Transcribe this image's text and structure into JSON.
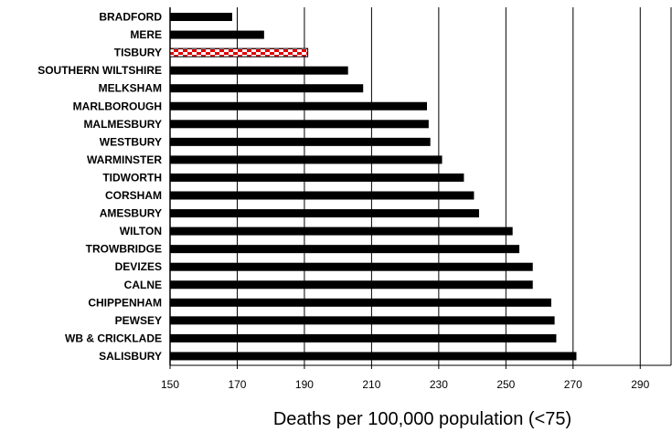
{
  "chart_data": {
    "type": "bar",
    "orientation": "horizontal",
    "xlabel": "Deaths per 100,000 population (<75)",
    "ylabel": "",
    "title": "",
    "xlim": [
      150,
      300
    ],
    "xticks": [
      150,
      170,
      190,
      210,
      230,
      250,
      270,
      290
    ],
    "grid": "vertical",
    "categories": [
      "BRADFORD",
      "MERE",
      "TISBURY",
      "SOUTHERN WILTSHIRE",
      "MELKSHAM",
      "MARLBOROUGH",
      "MALMESBURY",
      "WESTBURY",
      "WARMINSTER",
      "TIDWORTH",
      "CORSHAM",
      "AMESBURY",
      "WILTON",
      "TROWBRIDGE",
      "DEVIZES",
      "CALNE",
      "CHIPPENHAM",
      "PEWSEY",
      "WB & CRICKLADE",
      "SALISBURY"
    ],
    "values": [
      168.5,
      178,
      191,
      203,
      207.5,
      226.5,
      227,
      227.5,
      231,
      237.5,
      240.5,
      242,
      252,
      254,
      258,
      258,
      263.5,
      264.5,
      265,
      271
    ],
    "highlighted_category": "TISBURY",
    "colors": {
      "bar": "#000000",
      "highlight_fill": "#ffffff",
      "highlight_pattern": "#e00000",
      "grid": "#000000"
    }
  }
}
